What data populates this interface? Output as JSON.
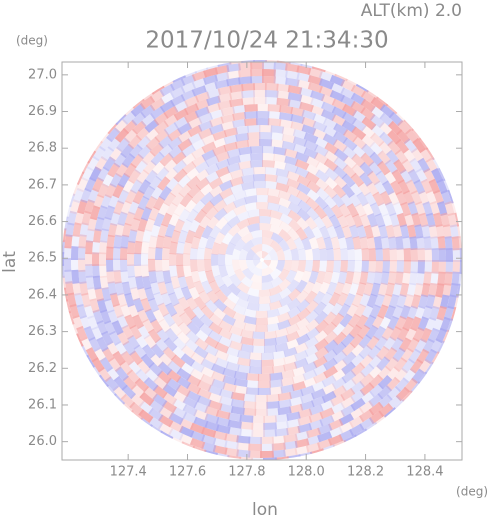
{
  "chart_data": {
    "type": "radar-image",
    "title": "2017/10/24 21:34:30",
    "subtitle": "ALT(km) 2.0",
    "x_label": "lon",
    "x_unit": "(deg)",
    "y_label": "lat",
    "y_unit": "(deg)",
    "xlim": [
      127.177,
      128.525
    ],
    "ylim": [
      25.95,
      27.035
    ],
    "xticks": [
      127.4,
      127.6,
      127.8,
      {
        "value": 128,
        "label": "128.0"
      },
      128.2,
      128.4
    ],
    "yticks": [
      {
        "value": 26,
        "label": "26.0"
      },
      26.1,
      26.2,
      26.3,
      26.4,
      26.5,
      26.6,
      26.7,
      26.8,
      26.9,
      {
        "value": 27,
        "label": "27.0"
      }
    ],
    "colors": [
      "#f4a0a0",
      "#a8a8f0"
    ]
  }
}
